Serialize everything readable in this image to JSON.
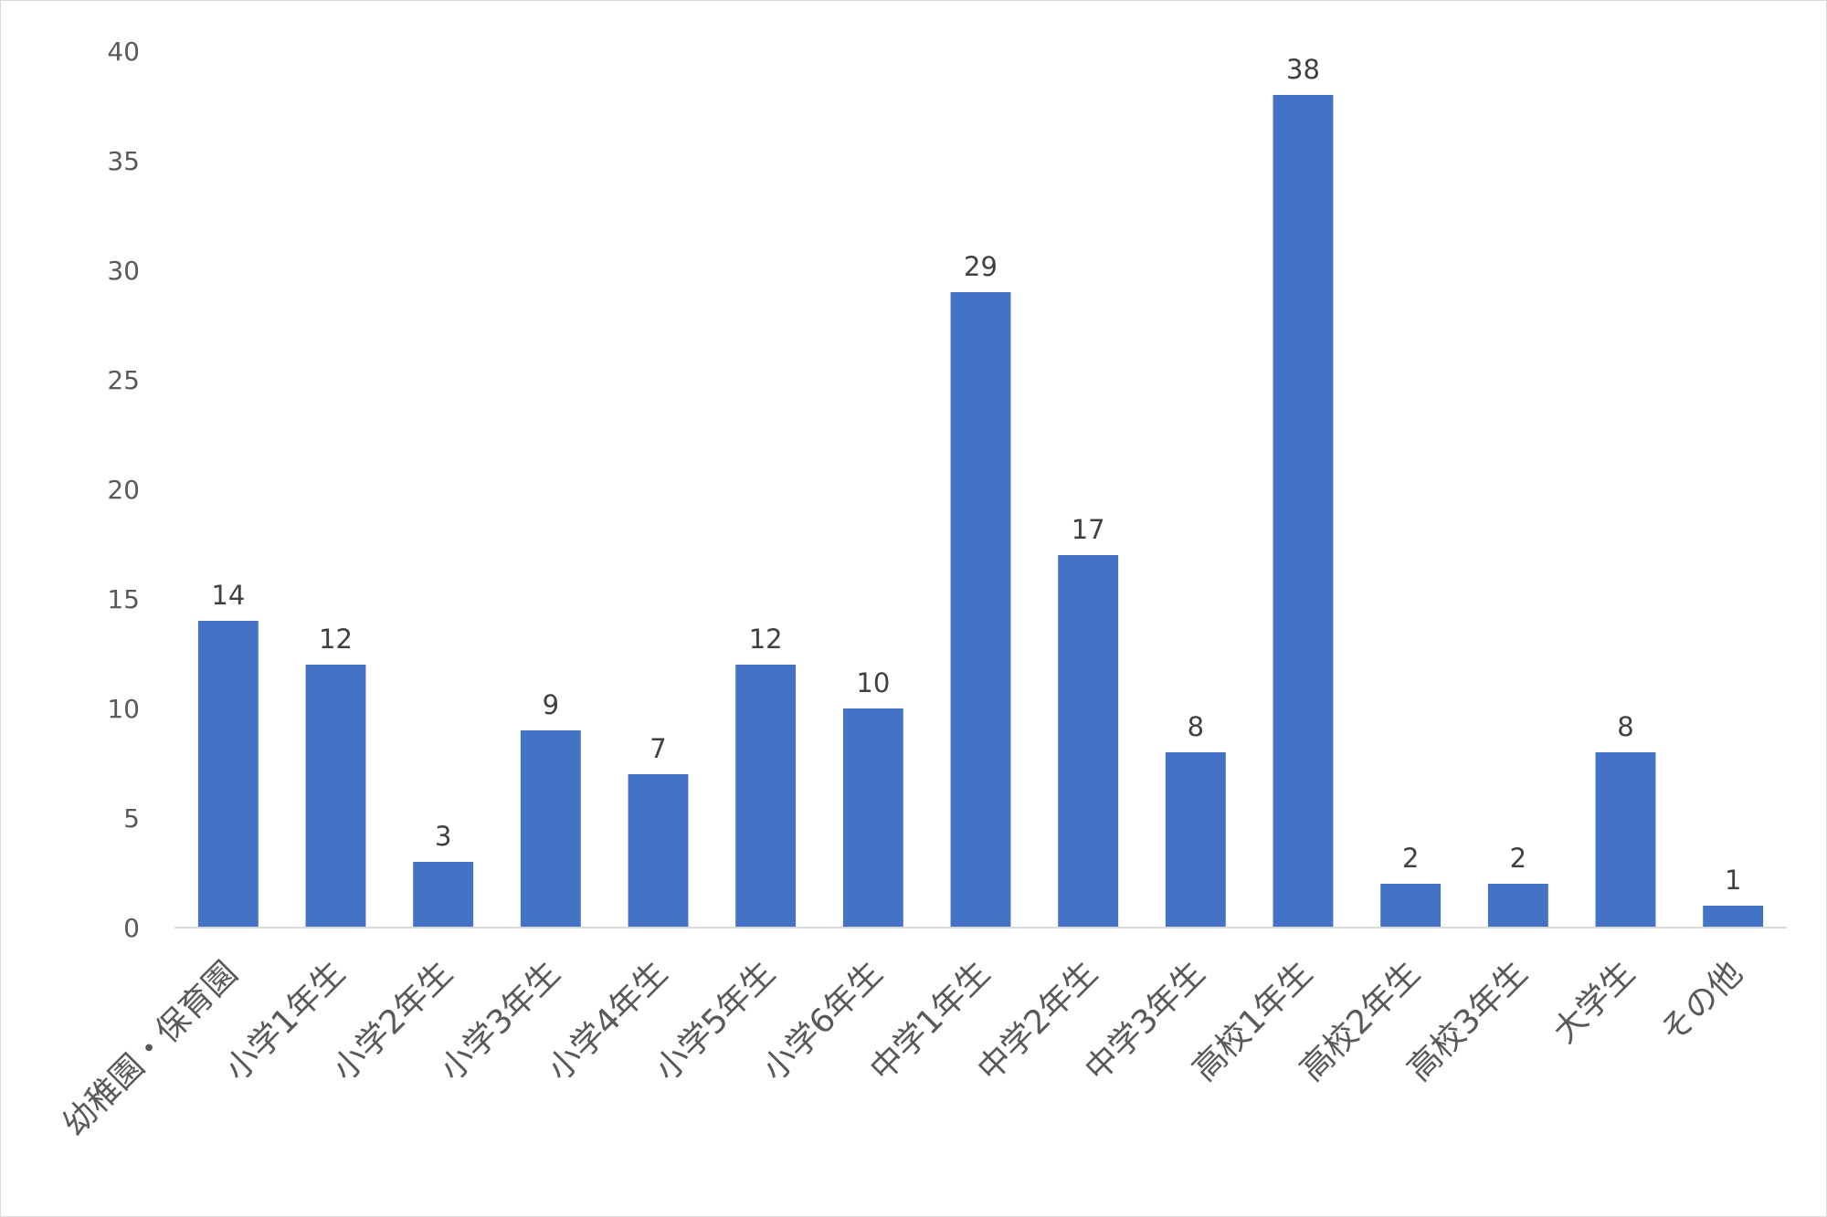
{
  "chart_data": {
    "type": "bar",
    "categories": [
      "幼稚園・保育園",
      "小学1年生",
      "小学2年生",
      "小学3年生",
      "小学4年生",
      "小学5年生",
      "小学6年生",
      "中学1年生",
      "中学2年生",
      "中学3年生",
      "高校1年生",
      "高校2年生",
      "高校3年生",
      "大学生",
      "その他"
    ],
    "values": [
      14,
      12,
      3,
      9,
      7,
      12,
      10,
      29,
      17,
      8,
      38,
      2,
      2,
      8,
      1
    ],
    "ylim": [
      0,
      40
    ],
    "yticks": [
      0,
      5,
      10,
      15,
      20,
      25,
      30,
      35,
      40
    ],
    "grid": false,
    "data_labels": true,
    "bar_color": "#4472C4",
    "axis_color": "#d9d9d9"
  }
}
